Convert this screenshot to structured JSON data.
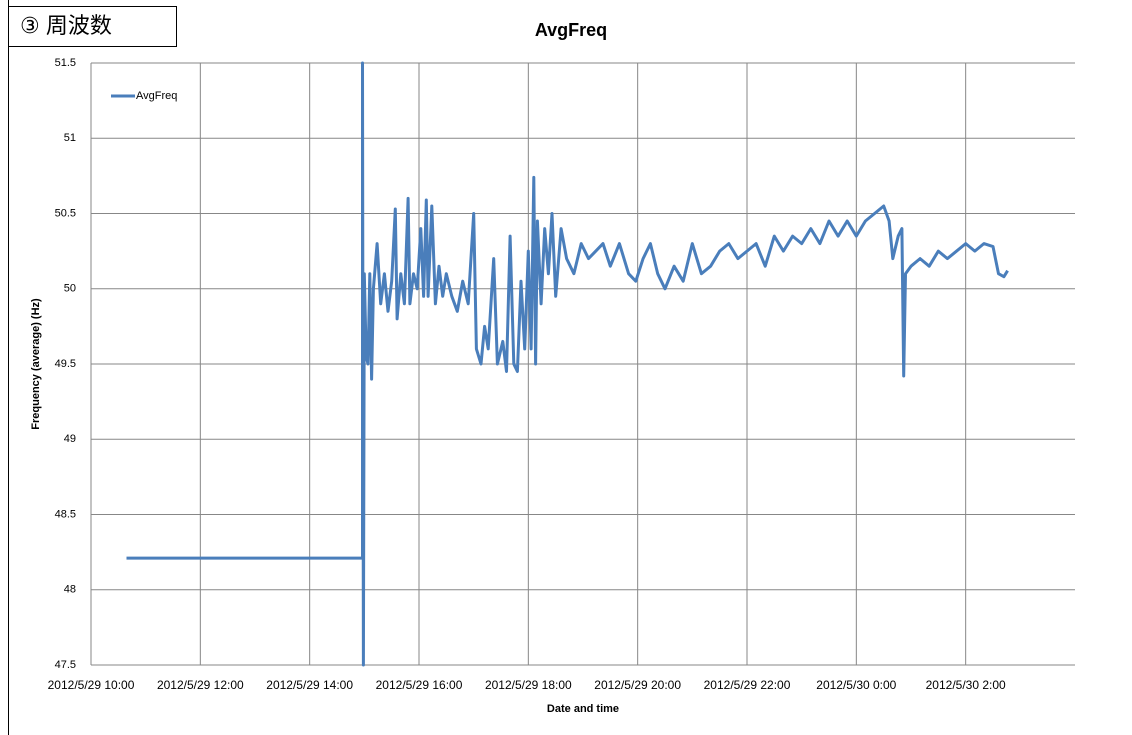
{
  "section_label": "③ 周波数",
  "chart_data": {
    "type": "line",
    "title": "AvgFreq",
    "x_label": "Date and time",
    "y_label": "Frequency (average) (Hz)",
    "xlim": [
      "2012/5/29 10:00",
      "2012/5/30 4:00"
    ],
    "xticks": [
      "2012/5/29 10:00",
      "2012/5/29 12:00",
      "2012/5/29 14:00",
      "2012/5/29 16:00",
      "2012/5/29 18:00",
      "2012/5/29 20:00",
      "2012/5/29 22:00",
      "2012/5/30 0:00",
      "2012/5/30 2:00"
    ],
    "ylim": [
      47.5,
      51.5
    ],
    "yticks": [
      47.5,
      48,
      48.5,
      49,
      49.5,
      50,
      50.5,
      51,
      51.5
    ],
    "grid": true,
    "legend": "top-left",
    "x": [
      "2012/5/29 10:39",
      "2012/5/29 14:58",
      "2012/5/29 14:58",
      "2012/5/29 14:59",
      "2012/5/29 15:00",
      "2012/5/29 15:02",
      "2012/5/29 15:04",
      "2012/5/29 15:06",
      "2012/5/29 15:08",
      "2012/5/29 15:10",
      "2012/5/29 15:14",
      "2012/5/29 15:18",
      "2012/5/29 15:22",
      "2012/5/29 15:26",
      "2012/5/29 15:30",
      "2012/5/29 15:34",
      "2012/5/29 15:36",
      "2012/5/29 15:40",
      "2012/5/29 15:44",
      "2012/5/29 15:48",
      "2012/5/29 15:50",
      "2012/5/29 15:54",
      "2012/5/29 15:58",
      "2012/5/29 16:02",
      "2012/5/29 16:05",
      "2012/5/29 16:08",
      "2012/5/29 16:10",
      "2012/5/29 16:14",
      "2012/5/29 16:18",
      "2012/5/29 16:22",
      "2012/5/29 16:26",
      "2012/5/29 16:30",
      "2012/5/29 16:36",
      "2012/5/29 16:42",
      "2012/5/29 16:48",
      "2012/5/29 16:54",
      "2012/5/29 17:00",
      "2012/5/29 17:03",
      "2012/5/29 17:08",
      "2012/5/29 17:12",
      "2012/5/29 17:16",
      "2012/5/29 17:22",
      "2012/5/29 17:26",
      "2012/5/29 17:32",
      "2012/5/29 17:36",
      "2012/5/29 17:40",
      "2012/5/29 17:44",
      "2012/5/29 17:48",
      "2012/5/29 17:52",
      "2012/5/29 17:56",
      "2012/5/29 18:00",
      "2012/5/29 18:03",
      "2012/5/29 18:06",
      "2012/5/29 18:08",
      "2012/5/29 18:10",
      "2012/5/29 18:14",
      "2012/5/29 18:18",
      "2012/5/29 18:22",
      "2012/5/29 18:26",
      "2012/5/29 18:30",
      "2012/5/29 18:36",
      "2012/5/29 18:42",
      "2012/5/29 18:50",
      "2012/5/29 18:58",
      "2012/5/29 19:06",
      "2012/5/29 19:14",
      "2012/5/29 19:22",
      "2012/5/29 19:30",
      "2012/5/29 19:40",
      "2012/5/29 19:50",
      "2012/5/29 19:58",
      "2012/5/29 20:06",
      "2012/5/29 20:14",
      "2012/5/29 20:22",
      "2012/5/29 20:30",
      "2012/5/29 20:40",
      "2012/5/29 20:50",
      "2012/5/29 21:00",
      "2012/5/29 21:10",
      "2012/5/29 21:20",
      "2012/5/29 21:30",
      "2012/5/29 21:40",
      "2012/5/29 21:50",
      "2012/5/29 22:00",
      "2012/5/29 22:10",
      "2012/5/29 22:20",
      "2012/5/29 22:30",
      "2012/5/29 22:40",
      "2012/5/29 22:50",
      "2012/5/29 23:00",
      "2012/5/29 23:10",
      "2012/5/29 23:20",
      "2012/5/29 23:30",
      "2012/5/29 23:40",
      "2012/5/29 23:50",
      "2012/5/30 0:00",
      "2012/5/30 0:10",
      "2012/5/30 0:20",
      "2012/5/30 0:30",
      "2012/5/30 0:36",
      "2012/5/30 0:40",
      "2012/5/30 0:46",
      "2012/5/30 0:50",
      "2012/5/30 0:52",
      "2012/5/30 0:54",
      "2012/5/30 1:00",
      "2012/5/30 1:10",
      "2012/5/30 1:20",
      "2012/5/30 1:30",
      "2012/5/30 1:40",
      "2012/5/30 1:50",
      "2012/5/30 2:00",
      "2012/5/30 2:10",
      "2012/5/30 2:20",
      "2012/5/30 2:30",
      "2012/5/30 2:36",
      "2012/5/30 2:42",
      "2012/5/30 2:46"
    ],
    "series": [
      {
        "name": "AvgFreq",
        "color": "#4a7ebb",
        "values": [
          48.21,
          48.21,
          51.5,
          47.5,
          50.1,
          49.55,
          49.5,
          50.1,
          49.4,
          50.0,
          50.3,
          49.9,
          50.1,
          49.85,
          50.05,
          50.53,
          49.8,
          50.1,
          49.9,
          50.6,
          49.9,
          50.1,
          50.0,
          50.4,
          49.95,
          50.59,
          49.95,
          50.55,
          49.9,
          50.15,
          49.95,
          50.1,
          49.95,
          49.85,
          50.05,
          49.9,
          50.5,
          49.6,
          49.5,
          49.75,
          49.6,
          50.2,
          49.5,
          49.65,
          49.45,
          50.35,
          49.5,
          49.45,
          50.05,
          49.6,
          50.25,
          49.6,
          50.74,
          49.5,
          50.45,
          49.9,
          50.4,
          50.1,
          50.5,
          49.95,
          50.4,
          50.2,
          50.1,
          50.3,
          50.2,
          50.25,
          50.3,
          50.15,
          50.3,
          50.1,
          50.05,
          50.2,
          50.3,
          50.1,
          50.0,
          50.15,
          50.05,
          50.3,
          50.1,
          50.15,
          50.25,
          50.3,
          50.2,
          50.25,
          50.3,
          50.15,
          50.35,
          50.25,
          50.35,
          50.3,
          50.4,
          50.3,
          50.45,
          50.35,
          50.45,
          50.35,
          50.45,
          50.5,
          50.55,
          50.45,
          50.2,
          50.35,
          50.4,
          49.42,
          50.1,
          50.15,
          50.2,
          50.15,
          50.25,
          50.2,
          50.25,
          50.3,
          50.25,
          50.3,
          50.28,
          50.1,
          50.08,
          50.12
        ]
      }
    ]
  }
}
